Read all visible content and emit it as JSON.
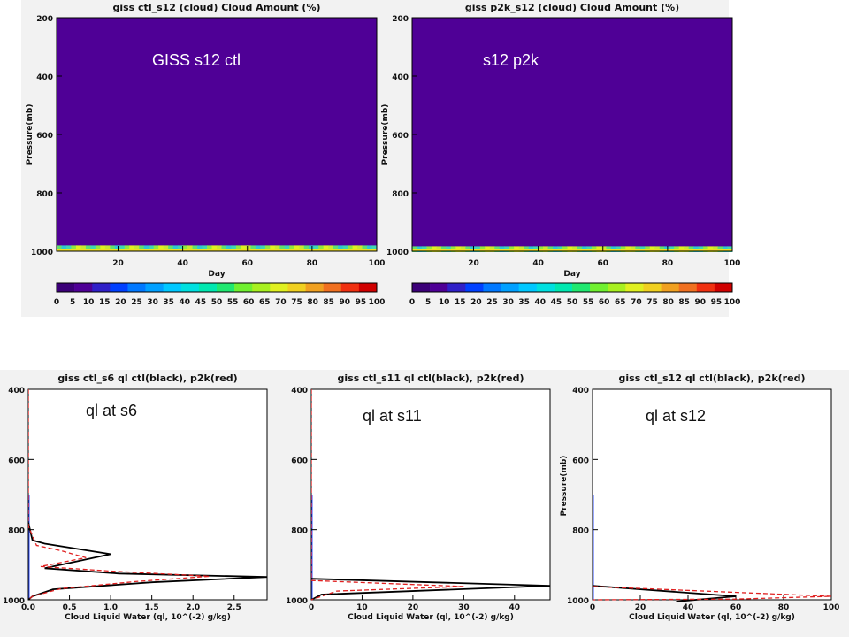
{
  "colors": {
    "background": "#f2f2f2",
    "field": "#4f0096",
    "ctl_line": "#000000",
    "p2k_line": "#e02020",
    "overlay_text_top": "#ffffff",
    "overlay_text_bottom": "#111111",
    "colorbar": [
      "#3c0078",
      "#4f0096",
      "#3020c8",
      "#0040ff",
      "#0078ff",
      "#00a0ff",
      "#00c8ff",
      "#00e0e0",
      "#00e8b0",
      "#20e870",
      "#70f030",
      "#a8f020",
      "#e0f020",
      "#f0d020",
      "#f0a020",
      "#f07020",
      "#f03010",
      "#d00000"
    ]
  },
  "chart_data": [
    {
      "type": "heatmap",
      "title": "giss ctl_s12  (cloud)  Cloud Amount (%)",
      "overlay_label": "GISS s12 ctl",
      "xlabel": "Day",
      "ylabel": "Pressure(mb)",
      "xlim": [
        1,
        100
      ],
      "ylim": [
        1000,
        200
      ],
      "x_ticks": [
        20,
        40,
        60,
        80,
        100
      ],
      "y_ticks": [
        200,
        400,
        600,
        800,
        1000
      ],
      "background_value": 0,
      "low_cloud_layer": {
        "p_top": 980,
        "p_bottom": 1000,
        "value_range": [
          15,
          70
        ]
      },
      "colorbar_ticks": [
        "0",
        "5",
        "10",
        "15",
        "20",
        "25",
        "30",
        "35",
        "40",
        "45",
        "50",
        "55",
        "60",
        "65",
        "70",
        "75",
        "80",
        "85",
        "90",
        "95",
        "100"
      ]
    },
    {
      "type": "heatmap",
      "title": "giss p2k_s12  (cloud)  Cloud Amount (%)",
      "overlay_label": "s12 p2k",
      "xlabel": "Day",
      "ylabel": "Pressure(mb)",
      "xlim": [
        1,
        100
      ],
      "ylim": [
        1000,
        200
      ],
      "x_ticks": [
        20,
        40,
        60,
        80,
        100
      ],
      "y_ticks": [
        200,
        400,
        600,
        800,
        1000
      ],
      "background_value": 0,
      "low_cloud_layer": {
        "p_top": 980,
        "p_bottom": 1000,
        "value_range": [
          15,
          70
        ]
      },
      "colorbar_ticks": [
        "0",
        "5",
        "10",
        "15",
        "20",
        "25",
        "30",
        "35",
        "40",
        "45",
        "50",
        "55",
        "60",
        "65",
        "70",
        "75",
        "80",
        "85",
        "90",
        "95",
        "100"
      ]
    },
    {
      "type": "line",
      "title": "giss ctl_s6 ql ctl(black), p2k(red)",
      "overlay_label": "ql at s6",
      "xlabel": "Cloud Liquid Water (ql, 10^(-2) g/kg)",
      "ylabel": "",
      "xlim": [
        0,
        2.9
      ],
      "ylim": [
        1000,
        400
      ],
      "x_ticks": [
        "0.0",
        "0.5",
        "1.0",
        "1.5",
        "2.0",
        "2.5"
      ],
      "x_tick_values": [
        0,
        0.5,
        1.0,
        1.5,
        2.0,
        2.5
      ],
      "y_ticks": [
        400,
        600,
        800,
        1000
      ],
      "series": [
        {
          "name": "ctl",
          "style": "solid",
          "points": [
            [
              0.0,
              780
            ],
            [
              0.05,
              830
            ],
            [
              0.2,
              840
            ],
            [
              1.0,
              870
            ],
            [
              0.2,
              910
            ],
            [
              1.1,
              925
            ],
            [
              2.9,
              935
            ],
            [
              1.5,
              950
            ],
            [
              0.3,
              970
            ],
            [
              0.05,
              990
            ],
            [
              0.0,
              1000
            ]
          ]
        },
        {
          "name": "p2k",
          "style": "dashed",
          "points": [
            [
              0.0,
              400
            ],
            [
              0.0,
              790
            ],
            [
              0.1,
              845
            ],
            [
              0.4,
              860
            ],
            [
              0.7,
              880
            ],
            [
              0.15,
              905
            ],
            [
              1.0,
              918
            ],
            [
              2.2,
              933
            ],
            [
              1.3,
              948
            ],
            [
              0.4,
              968
            ],
            [
              0.05,
              990
            ],
            [
              0.0,
              1000
            ]
          ]
        }
      ]
    },
    {
      "type": "line",
      "title": "giss ctl_s11 ql ctl(black), p2k(red)",
      "overlay_label": "ql at s11",
      "xlabel": "Cloud Liquid Water (ql, 10^(-2) g/kg)",
      "ylabel": "",
      "xlim": [
        0,
        47
      ],
      "ylim": [
        1000,
        400
      ],
      "x_ticks": [
        "0",
        "10",
        "20",
        "30",
        "40"
      ],
      "x_tick_values": [
        0,
        10,
        20,
        30,
        40
      ],
      "y_ticks": [
        400,
        600,
        800,
        1000
      ],
      "series": [
        {
          "name": "ctl",
          "style": "solid",
          "points": [
            [
              0,
              940
            ],
            [
              47,
              960
            ],
            [
              2,
              985
            ],
            [
              0,
              1000
            ]
          ]
        },
        {
          "name": "p2k",
          "style": "dashed",
          "points": [
            [
              0,
              400
            ],
            [
              0,
              945
            ],
            [
              30,
              962
            ],
            [
              5,
              975
            ],
            [
              0,
              1000
            ]
          ]
        }
      ]
    },
    {
      "type": "line",
      "title": "giss ctl_s12 ql ctl(black), p2k(red)",
      "overlay_label": "ql at s12",
      "xlabel": "Cloud Liquid Water (ql, 10^(-2) g/kg)",
      "ylabel": "Pressure(mb)",
      "xlim": [
        0,
        100
      ],
      "ylim": [
        1000,
        400
      ],
      "x_ticks": [
        "0",
        "20",
        "40",
        "60",
        "80",
        "100"
      ],
      "x_tick_values": [
        0,
        20,
        40,
        60,
        80,
        100
      ],
      "y_ticks": [
        400,
        600,
        800,
        1000
      ],
      "series": [
        {
          "name": "ctl",
          "style": "solid",
          "points": [
            [
              0,
              960
            ],
            [
              60,
              990
            ],
            [
              35,
              1005
            ]
          ]
        },
        {
          "name": "p2k",
          "style": "dashed",
          "points": [
            [
              0,
              400
            ],
            [
              0,
              962
            ],
            [
              100,
              990
            ],
            [
              60,
              998
            ],
            [
              0,
              1000
            ]
          ]
        }
      ]
    }
  ]
}
